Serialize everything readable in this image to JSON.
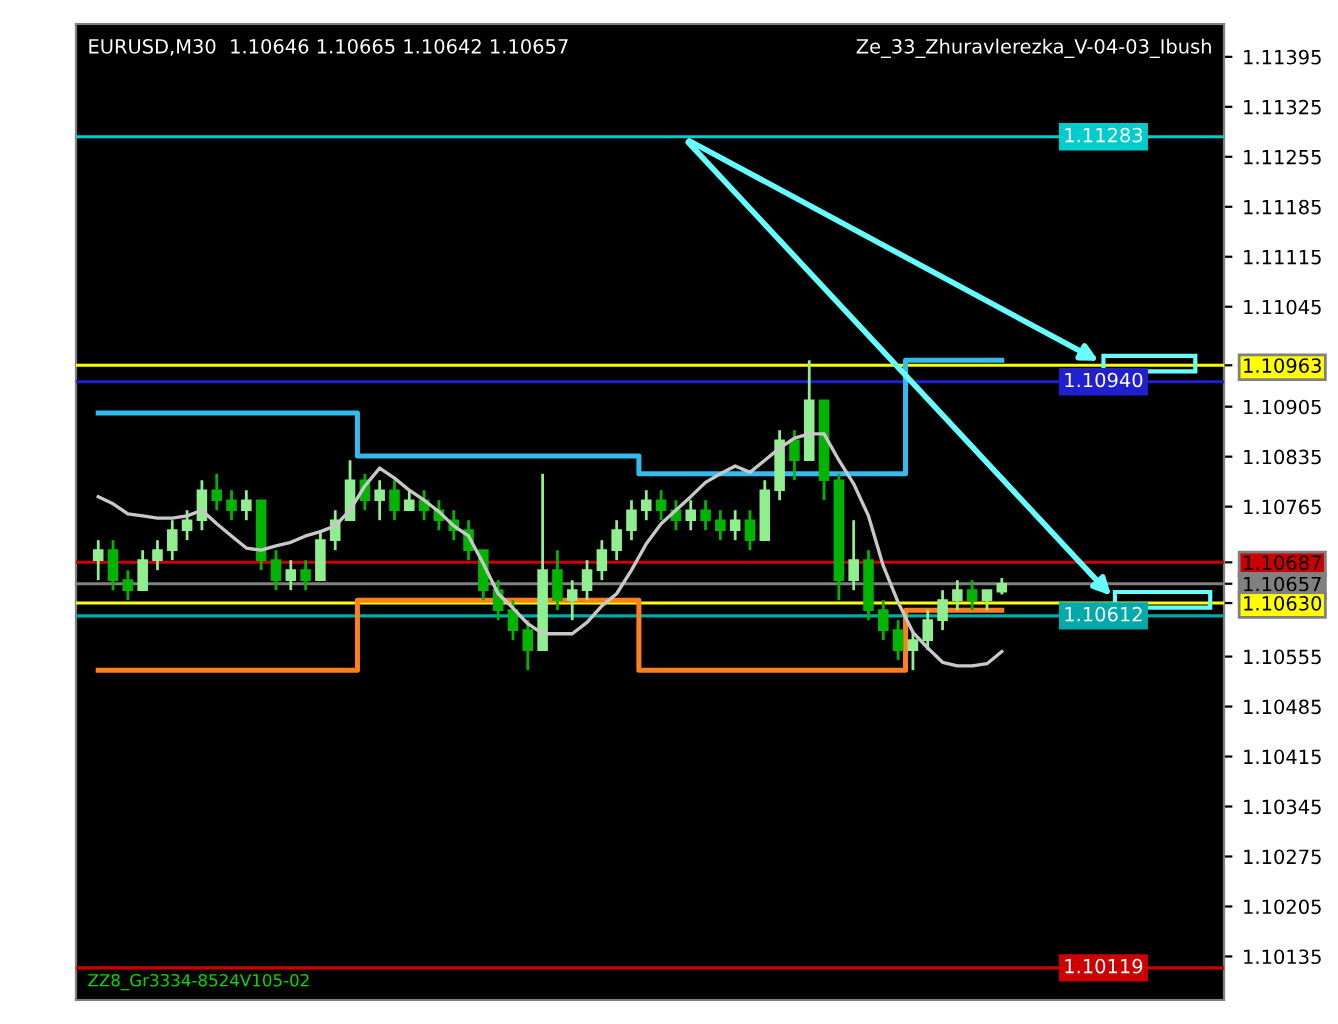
{
  "chart_data": {
    "type": "candlestick",
    "title": "EURUSD,M30  1.10646 1.10665 1.10642 1.10657",
    "annotations": [
      "Ze_33_Zhuravlerezka_V-04-03_Ibush",
      "ZZ8_Gr3334-8524V105-02"
    ],
    "categories": [
      null,
      null,
      null,
      null,
      null,
      null,
      null,
      null,
      null,
      null,
      null,
      null,
      null,
      null,
      null,
      null,
      null,
      null,
      null,
      null,
      null,
      null,
      null,
      null,
      null,
      null,
      null,
      null,
      null,
      null,
      null,
      null,
      null,
      null,
      null,
      null,
      null,
      null,
      null,
      null,
      null,
      null,
      null,
      null,
      null,
      null,
      null,
      null,
      null,
      null,
      null,
      null,
      null,
      null,
      null,
      null,
      null,
      null,
      null,
      null,
      null,
      null
    ],
    "ohlc": [
      [
        1.1069,
        1.10718,
        1.10662,
        1.10704
      ],
      [
        1.10704,
        1.10718,
        1.10648,
        1.10662
      ],
      [
        1.10662,
        1.10676,
        1.10634,
        1.10648
      ],
      [
        1.10648,
        1.10704,
        1.10648,
        1.1069
      ],
      [
        1.1069,
        1.10718,
        1.10676,
        1.10704
      ],
      [
        1.10704,
        1.10746,
        1.1069,
        1.10732
      ],
      [
        1.10732,
        1.1076,
        1.10718,
        1.10746
      ],
      [
        1.10746,
        1.10802,
        1.10732,
        1.10788
      ],
      [
        1.10788,
        1.10811,
        1.1076,
        1.10774
      ],
      [
        1.10774,
        1.10788,
        1.10746,
        1.1076
      ],
      [
        1.1076,
        1.10788,
        1.10746,
        1.10774
      ],
      [
        1.10774,
        1.10774,
        1.10676,
        1.1069
      ],
      [
        1.1069,
        1.10704,
        1.10648,
        1.10662
      ],
      [
        1.10662,
        1.1069,
        1.10648,
        1.10676
      ],
      [
        1.10676,
        1.1069,
        1.10648,
        1.10662
      ],
      [
        1.10662,
        1.10732,
        1.10662,
        1.10718
      ],
      [
        1.10718,
        1.1076,
        1.10704,
        1.10746
      ],
      [
        1.10746,
        1.1083,
        1.10746,
        1.10802
      ],
      [
        1.10802,
        1.10811,
        1.1076,
        1.10774
      ],
      [
        1.10774,
        1.10802,
        1.10746,
        1.10788
      ],
      [
        1.10788,
        1.10802,
        1.10746,
        1.1076
      ],
      [
        1.1076,
        1.10788,
        1.1076,
        1.10774
      ],
      [
        1.10774,
        1.10788,
        1.10746,
        1.1076
      ],
      [
        1.1076,
        1.10774,
        1.10732,
        1.10746
      ],
      [
        1.10746,
        1.1076,
        1.10718,
        1.10732
      ],
      [
        1.10732,
        1.10746,
        1.1069,
        1.10704
      ],
      [
        1.10704,
        1.10704,
        1.10634,
        1.10648
      ],
      [
        1.10648,
        1.10662,
        1.10606,
        1.1062
      ],
      [
        1.1062,
        1.10634,
        1.10578,
        1.10592
      ],
      [
        1.10592,
        1.10606,
        1.10536,
        1.10564
      ],
      [
        1.10564,
        1.10811,
        1.10564,
        1.10676
      ],
      [
        1.10676,
        1.10704,
        1.1062,
        1.10634
      ],
      [
        1.10634,
        1.10662,
        1.10606,
        1.10648
      ],
      [
        1.10648,
        1.1069,
        1.10634,
        1.10676
      ],
      [
        1.10676,
        1.10718,
        1.10662,
        1.10704
      ],
      [
        1.10704,
        1.10746,
        1.1069,
        1.10732
      ],
      [
        1.10732,
        1.10774,
        1.10718,
        1.1076
      ],
      [
        1.1076,
        1.10788,
        1.10746,
        1.10774
      ],
      [
        1.10774,
        1.10788,
        1.10746,
        1.1076
      ],
      [
        1.1076,
        1.10774,
        1.10732,
        1.10746
      ],
      [
        1.10746,
        1.10774,
        1.10732,
        1.1076
      ],
      [
        1.1076,
        1.10774,
        1.10732,
        1.10746
      ],
      [
        1.10746,
        1.1076,
        1.10718,
        1.10732
      ],
      [
        1.10732,
        1.1076,
        1.10718,
        1.10746
      ],
      [
        1.10746,
        1.1076,
        1.10704,
        1.10718
      ],
      [
        1.10718,
        1.10802,
        1.10718,
        1.10788
      ],
      [
        1.10788,
        1.10872,
        1.10774,
        1.10858
      ],
      [
        1.10858,
        1.10872,
        1.10802,
        1.1083
      ],
      [
        1.1083,
        1.1097,
        1.1083,
        1.10914
      ],
      [
        1.10914,
        1.10914,
        1.10774,
        1.10802
      ],
      [
        1.10802,
        1.10811,
        1.10634,
        1.10662
      ],
      [
        1.10662,
        1.10746,
        1.10648,
        1.1069
      ],
      [
        1.1069,
        1.10704,
        1.10606,
        1.1062
      ],
      [
        1.1062,
        1.10634,
        1.10578,
        1.10592
      ],
      [
        1.10592,
        1.10606,
        1.1055,
        1.10564
      ],
      [
        1.10564,
        1.10592,
        1.10536,
        1.10578
      ],
      [
        1.10578,
        1.1062,
        1.10564,
        1.10606
      ],
      [
        1.10606,
        1.10648,
        1.10592,
        1.10634
      ],
      [
        1.10634,
        1.10662,
        1.1062,
        1.10648
      ],
      [
        1.10648,
        1.10662,
        1.1062,
        1.10634
      ],
      [
        1.10634,
        1.10648,
        1.1062,
        1.10648
      ],
      [
        1.10646,
        1.10665,
        1.10642,
        1.10657
      ]
    ],
    "colors": [
      "#90ee90",
      "#00b400",
      "#00b400",
      "#90ee90",
      "#90ee90",
      "#90ee90",
      "#90ee90",
      "#90ee90",
      "#00b400",
      "#00b400",
      "#90ee90",
      "#00b400",
      "#00b400",
      "#90ee90",
      "#00b400",
      "#90ee90",
      "#90ee90",
      "#90ee90",
      "#00b400",
      "#90ee90",
      "#00b400",
      "#90ee90",
      "#00b400",
      "#00b400",
      "#00b400",
      "#00b400",
      "#00b400",
      "#00b400",
      "#00b400",
      "#00b400",
      "#90ee90",
      "#00b400",
      "#90ee90",
      "#90ee90",
      "#90ee90",
      "#90ee90",
      "#90ee90",
      "#90ee90",
      "#00b400",
      "#00b400",
      "#90ee90",
      "#00b400",
      "#00b400",
      "#90ee90",
      "#00b400",
      "#90ee90",
      "#90ee90",
      "#00b400",
      "#90ee90",
      "#00b400",
      "#00b400",
      "#90ee90",
      "#00b400",
      "#00b400",
      "#00b400",
      "#90ee90",
      "#90ee90",
      "#90ee90",
      "#90ee90",
      "#00b400",
      "#90ee90",
      "#90ee90"
    ],
    "series": [
      {
        "type": "line",
        "color": "#c8c8c8",
        "values": [
          1.10779,
          1.10769,
          1.10755,
          1.10752,
          1.10749,
          1.10749,
          1.10752,
          1.1076,
          1.10741,
          1.10724,
          1.10707,
          1.10704,
          1.1071,
          1.10715,
          1.10724,
          1.1073,
          1.10738,
          1.1076,
          1.10794,
          1.10819,
          1.10805,
          1.10788,
          1.10774,
          1.10758,
          1.10738,
          1.10724,
          1.10685,
          1.10643,
          1.10623,
          1.10601,
          1.10587,
          1.10587,
          1.10587,
          1.10603,
          1.10626,
          1.10643,
          1.10676,
          1.10713,
          1.10741,
          1.1076,
          1.10779,
          1.10799,
          1.10811,
          1.10822,
          1.10813,
          1.1083,
          1.10847,
          1.10861,
          1.10867,
          1.10867,
          1.1083,
          1.10797,
          1.10752,
          1.10682,
          1.10631,
          1.10589,
          1.10567,
          1.10547,
          1.10542,
          1.10542,
          1.10545,
          1.10562
        ]
      },
      {
        "type": "step",
        "color": "#33bbee",
        "values": [
          1.10896,
          1.10896,
          1.10896,
          1.10896,
          1.10896,
          1.10896,
          1.10896,
          1.10896,
          1.10896,
          1.10896,
          1.10896,
          1.10896,
          1.10896,
          1.10896,
          1.10896,
          1.10896,
          1.10896,
          1.10896,
          1.10836,
          1.10836,
          1.10836,
          1.10836,
          1.10836,
          1.10836,
          1.10836,
          1.10836,
          1.10836,
          1.10836,
          1.10836,
          1.10836,
          1.10836,
          1.10836,
          1.10836,
          1.10836,
          1.10836,
          1.10836,
          1.10836,
          1.10811,
          1.10811,
          1.10811,
          1.10811,
          1.10811,
          1.10811,
          1.10811,
          1.10811,
          1.10811,
          1.10811,
          1.10811,
          1.10811,
          1.10811,
          1.10811,
          1.10811,
          1.10811,
          1.10811,
          1.10811,
          1.1097,
          1.1097,
          1.1097,
          1.1097,
          1.1097,
          1.1097,
          1.1097
        ]
      },
      {
        "type": "step",
        "color": "#ff7f1e",
        "values": [
          1.10536,
          1.10536,
          1.10536,
          1.10536,
          1.10536,
          1.10536,
          1.10536,
          1.10536,
          1.10536,
          1.10536,
          1.10536,
          1.10536,
          1.10536,
          1.10536,
          1.10536,
          1.10536,
          1.10536,
          1.10536,
          1.10634,
          1.10634,
          1.10634,
          1.10634,
          1.10634,
          1.10634,
          1.10634,
          1.10634,
          1.10634,
          1.10634,
          1.10634,
          1.10634,
          1.10634,
          1.10634,
          1.10634,
          1.10634,
          1.10634,
          1.10634,
          1.10634,
          1.10536,
          1.10536,
          1.10536,
          1.10536,
          1.10536,
          1.10536,
          1.10536,
          1.10536,
          1.10536,
          1.10536,
          1.10536,
          1.10536,
          1.10536,
          1.10536,
          1.10536,
          1.10536,
          1.10536,
          1.10536,
          1.1062,
          1.1062,
          1.1062,
          1.1062,
          1.1062,
          1.1062,
          1.1062
        ]
      }
    ],
    "ref_lines": [
      {
        "axis": "y",
        "value": 1.11283,
        "label": "1.11283",
        "color": "#00cccc"
      },
      {
        "axis": "y",
        "value": 1.10963,
        "color": "#ffff00"
      },
      {
        "axis": "y",
        "value": 1.1094,
        "label": "1.10940",
        "color": "#2020d0"
      },
      {
        "axis": "y",
        "value": 1.10687,
        "color": "#cc0000"
      },
      {
        "axis": "y",
        "value": 1.10657,
        "color": "#808080"
      },
      {
        "axis": "y",
        "value": 1.1063,
        "color": "#ffff00"
      },
      {
        "axis": "y",
        "value": 1.10612,
        "label": "1.10612",
        "color": "#00aaaa"
      },
      {
        "axis": "y",
        "value": 1.10119,
        "label": "1.10119",
        "color": "#cc0000"
      }
    ],
    "ylim": [
      1.10074,
      1.11441
    ],
    "yticks": [
      1.11395,
      1.11325,
      1.11255,
      1.11185,
      1.11115,
      1.11045,
      1.10963,
      1.10905,
      1.10835,
      1.10765,
      1.10687,
      1.10657,
      {
        "value": 1.1063,
        "label": "1.10630"
      },
      1.10555,
      1.10485,
      1.10415,
      1.10345,
      1.10275,
      1.10205,
      1.10135
    ],
    "tick_labels": "y",
    "grid": false
  }
}
